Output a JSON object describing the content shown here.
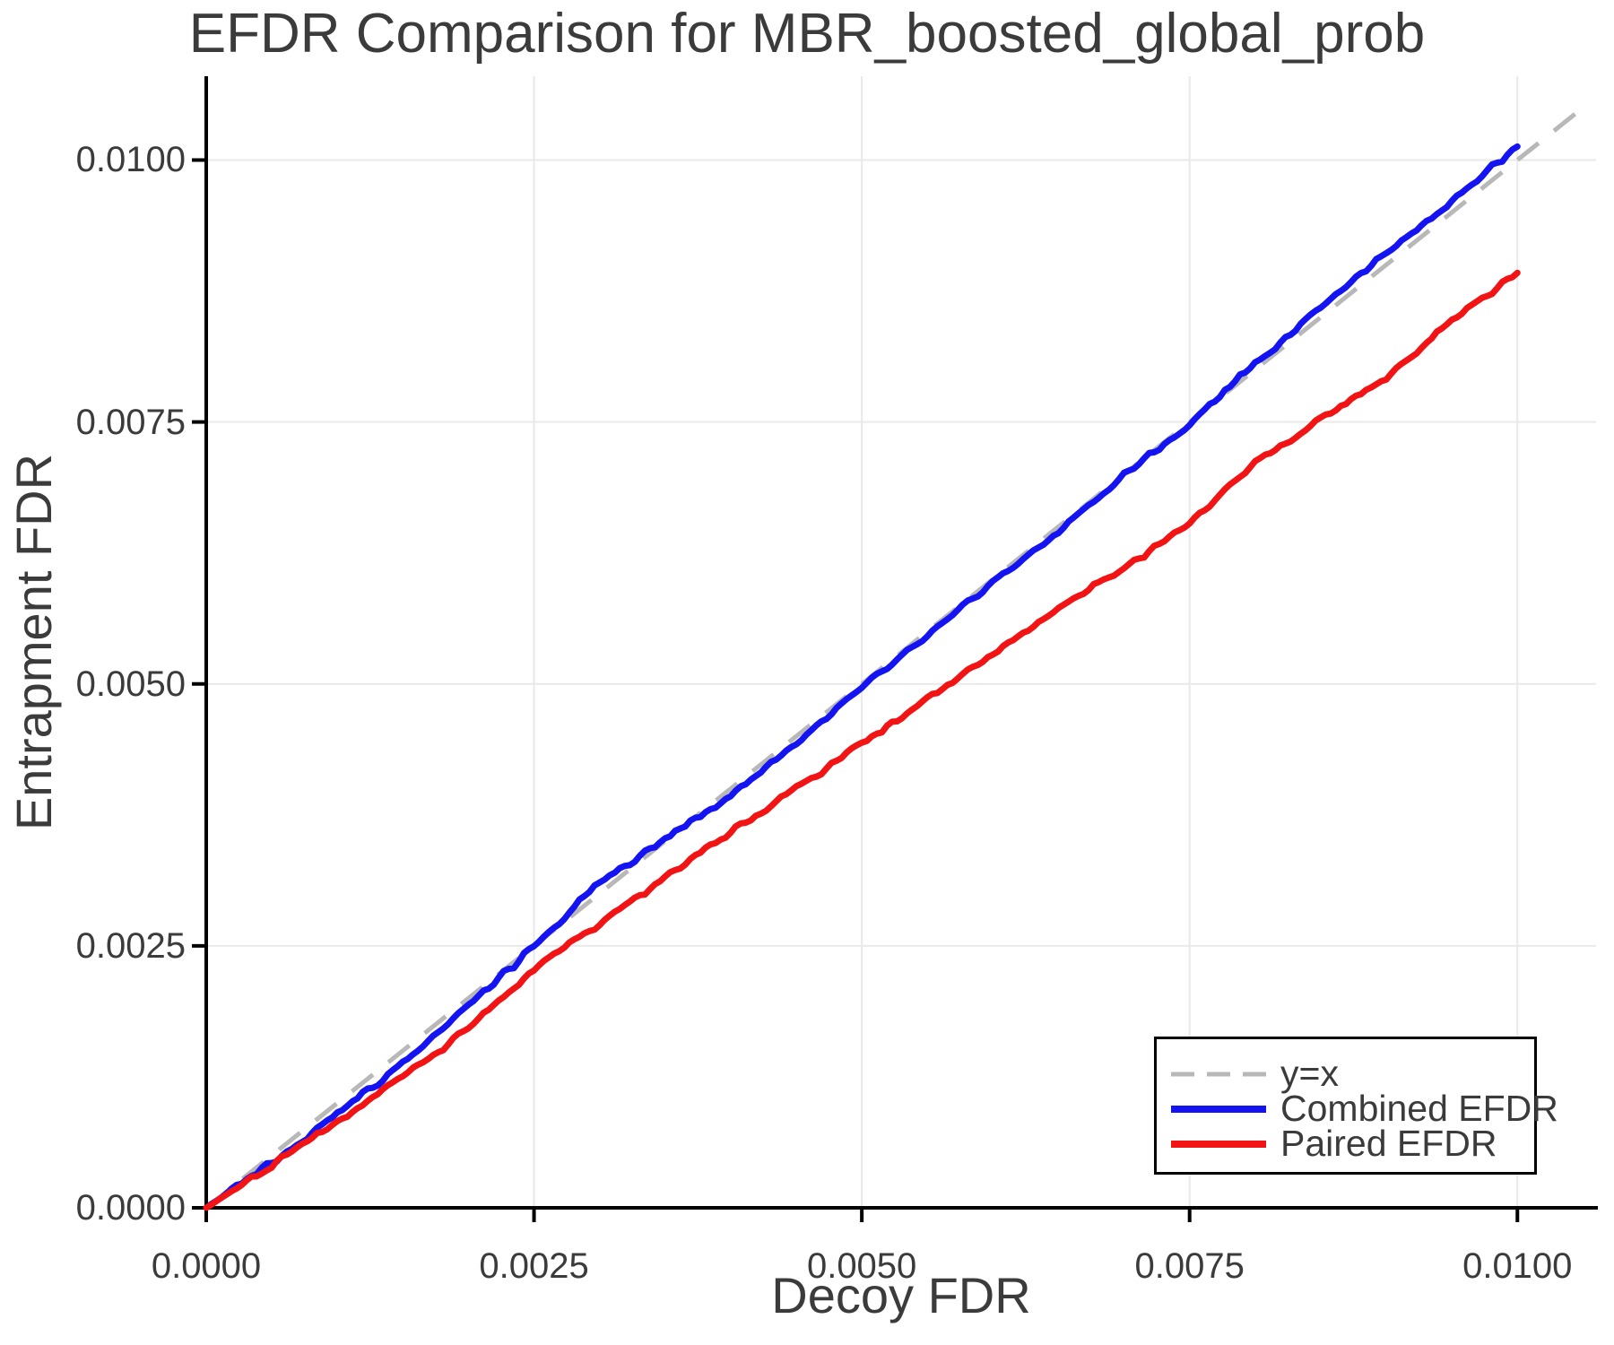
{
  "chart_data": {
    "type": "line",
    "title": "EFDR Comparison for MBR_boosted_global_prob",
    "xlabel": "Decoy FDR",
    "ylabel": "Entrapment FDR",
    "xlim": [
      0,
      0.0106
    ],
    "ylim": [
      0,
      0.0108
    ],
    "grid": true,
    "legend_position": "bottom-right",
    "xticks": {
      "values": [
        0,
        0.0025,
        0.005,
        0.0075,
        0.01
      ],
      "labels": [
        "0.0000",
        "0.0025",
        "0.0050",
        "0.0075",
        "0.0100"
      ]
    },
    "yticks": {
      "values": [
        0,
        0.0025,
        0.005,
        0.0075,
        0.01
      ],
      "labels": [
        "0.0000",
        "0.0025",
        "0.0050",
        "0.0075",
        "0.0100"
      ]
    },
    "colors": {
      "identity_line": "#b8b8b8",
      "combined_line": "#1414f2",
      "paired_line": "#f21414",
      "grid_line": "#e9e9e9",
      "axis_line": "#000000",
      "text": "#3b3b3b",
      "background": "#ffffff"
    },
    "series": [
      {
        "name": "y=x",
        "style": "dashed",
        "color": "#b8b8b8",
        "x": [
          0,
          0.0105
        ],
        "y": [
          0,
          0.0105
        ]
      },
      {
        "name": "Combined EFDR",
        "style": "solid",
        "color": "#1414f2",
        "x": [
          0,
          0.0005,
          0.001,
          0.0015,
          0.002,
          0.0025,
          0.003,
          0.0035,
          0.004,
          0.0045,
          0.005,
          0.0055,
          0.006,
          0.0065,
          0.007,
          0.0075,
          0.008,
          0.0085,
          0.009,
          0.0095,
          0.01
        ],
        "y": [
          0,
          0.00044,
          0.0009,
          0.00138,
          0.00193,
          0.00249,
          0.0031,
          0.00352,
          0.00393,
          0.00444,
          0.00497,
          0.00546,
          0.00598,
          0.00645,
          0.007,
          0.00747,
          0.00806,
          0.0086,
          0.00911,
          0.00962,
          0.01013
        ]
      },
      {
        "name": "Paired EFDR",
        "style": "solid",
        "color": "#f21414",
        "x": [
          0,
          0.0005,
          0.001,
          0.0015,
          0.002,
          0.0025,
          0.003,
          0.0035,
          0.004,
          0.0045,
          0.005,
          0.0055,
          0.006,
          0.0065,
          0.007,
          0.0075,
          0.008,
          0.0085,
          0.009,
          0.0095,
          0.01
        ],
        "y": [
          0,
          0.0004,
          0.00083,
          0.00125,
          0.00172,
          0.00228,
          0.00272,
          0.00315,
          0.00359,
          0.004,
          0.00443,
          0.00485,
          0.00528,
          0.00571,
          0.00611,
          0.00653,
          0.00711,
          0.00752,
          0.00793,
          0.00846,
          0.00893
        ]
      }
    ]
  }
}
